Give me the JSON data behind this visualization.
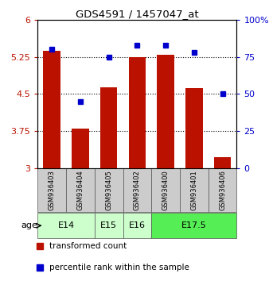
{
  "title": "GDS4591 / 1457047_at",
  "samples": [
    "GSM936403",
    "GSM936404",
    "GSM936405",
    "GSM936402",
    "GSM936400",
    "GSM936401",
    "GSM936406"
  ],
  "bar_values": [
    5.37,
    3.8,
    4.63,
    5.25,
    5.3,
    4.62,
    3.22
  ],
  "percentile_values": [
    80,
    45,
    75,
    83,
    83,
    78,
    50
  ],
  "bar_color": "#BB1100",
  "dot_color": "#0000CC",
  "ylim_left": [
    3,
    6
  ],
  "yticks_left": [
    3,
    3.75,
    4.5,
    5.25,
    6
  ],
  "ylim_right": [
    0,
    100
  ],
  "yticks_right": [
    0,
    25,
    50,
    75,
    100
  ],
  "yticklabels_right": [
    "0",
    "25",
    "50",
    "75",
    "100%"
  ],
  "age_groups": [
    {
      "label": "E14",
      "span": [
        0,
        1
      ],
      "color": "#CCFFCC"
    },
    {
      "label": "E15",
      "span": [
        2,
        2
      ],
      "color": "#CCFFCC"
    },
    {
      "label": "E16",
      "span": [
        3,
        3
      ],
      "color": "#CCFFCC"
    },
    {
      "label": "E17.5",
      "span": [
        4,
        6
      ],
      "color": "#55EE55"
    }
  ],
  "age_label": "age",
  "legend_bar_label": "transformed count",
  "legend_dot_label": "percentile rank within the sample",
  "background_color": "#ffffff",
  "sample_box_color": "#CCCCCC",
  "grid_lines": [
    3.75,
    4.5,
    5.25
  ]
}
